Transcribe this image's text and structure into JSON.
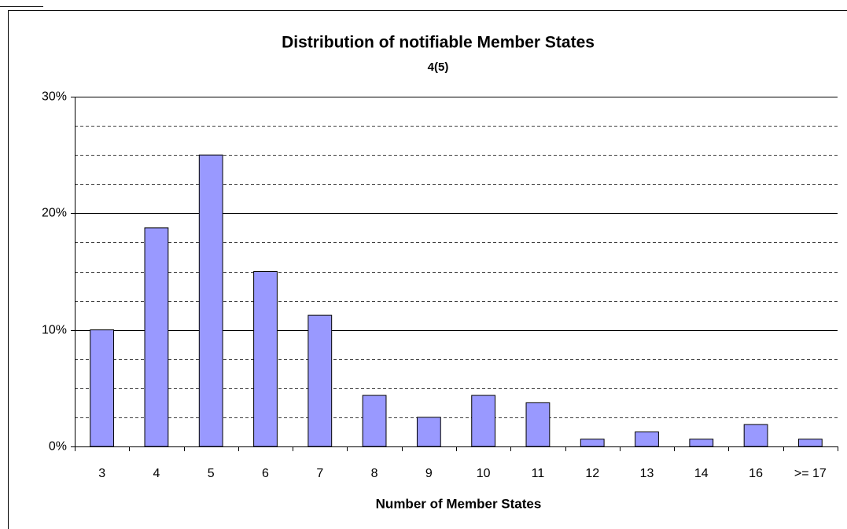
{
  "chart_data": {
    "type": "bar",
    "title": "Distribution of notifiable Member States",
    "subtitle": "4(5)",
    "x_label": "Number of Member States",
    "categories": [
      "3",
      "4",
      "5",
      "6",
      "7",
      "8",
      "9",
      "10",
      "11",
      "12",
      "13",
      "14",
      "16",
      ">= 17"
    ],
    "values": [
      10,
      18.75,
      25,
      15,
      11.25,
      4.38,
      2.5,
      4.38,
      3.75,
      0.63,
      1.25,
      0.63,
      1.88,
      0.63
    ],
    "color": "#9999ff",
    "ylim": [
      0,
      30
    ],
    "yticks": [
      {
        "value": 0,
        "label": "0%"
      },
      {
        "value": 10,
        "label": "10%"
      },
      {
        "value": 20,
        "label": "20%"
      },
      {
        "value": 30,
        "label": "30%"
      }
    ],
    "yticks_minor": [
      2.5,
      5,
      7.5,
      12.5,
      15,
      17.5,
      22.5,
      25,
      27.5
    ],
    "grid": true
  }
}
